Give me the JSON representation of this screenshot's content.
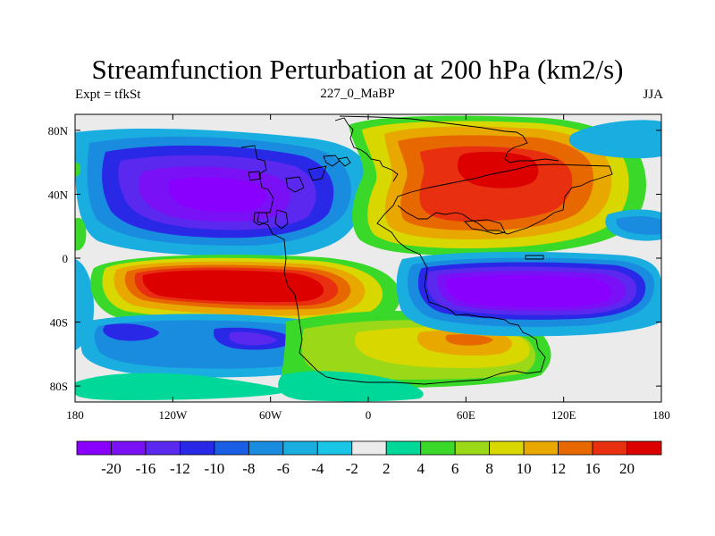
{
  "header": {
    "title": "Streamfunction Perturbation at 200 hPa (km2/s)",
    "left": "Expt = tfkSt",
    "center": "227_0_MaBP",
    "right": "JJA"
  },
  "chart_data": {
    "type": "heatmap",
    "title": "Streamfunction Perturbation at 200 hPa (km2/s)",
    "xlabel": "",
    "ylabel": "",
    "x_range": [
      -180,
      180
    ],
    "y_range": [
      -90,
      90
    ],
    "x_ticks": [
      {
        "value": -180,
        "label": "180"
      },
      {
        "value": -120,
        "label": "120W"
      },
      {
        "value": -60,
        "label": "60W"
      },
      {
        "value": 0,
        "label": "0"
      },
      {
        "value": 60,
        "label": "60E"
      },
      {
        "value": 120,
        "label": "120E"
      },
      {
        "value": 180,
        "label": "180"
      }
    ],
    "y_ticks": [
      {
        "value": 80,
        "label": "80N"
      },
      {
        "value": 40,
        "label": "40N"
      },
      {
        "value": 0,
        "label": "0"
      },
      {
        "value": -40,
        "label": "40S"
      },
      {
        "value": -80,
        "label": "80S"
      }
    ],
    "colorbar": {
      "labels": [
        "-20",
        "-16",
        "-12",
        "-10",
        "-8",
        "-6",
        "-4",
        "-2",
        "2",
        "4",
        "6",
        "8",
        "10",
        "12",
        "16",
        "20"
      ],
      "colors": [
        "#8a00ff",
        "#7a10f5",
        "#5a28ee",
        "#2828e6",
        "#1a5ee6",
        "#1a8ce0",
        "#1aaee0",
        "#1ac6e6",
        "#ebebeb",
        "#00d89a",
        "#3ad828",
        "#9ad818",
        "#d8d800",
        "#e8a800",
        "#e86800",
        "#e83010",
        "#dc0000"
      ]
    },
    "field_features": [
      {
        "name": "north-pacific-low",
        "lon": -105,
        "lat": 40,
        "value": -20
      },
      {
        "name": "south-pacific-high",
        "lon": -90,
        "lat": -25,
        "value": 20
      },
      {
        "name": "eurasia-high",
        "lon": 80,
        "lat": 45,
        "value": 16
      },
      {
        "name": "indian-ocean-low",
        "lon": 110,
        "lat": -30,
        "value": -20
      }
    ]
  }
}
